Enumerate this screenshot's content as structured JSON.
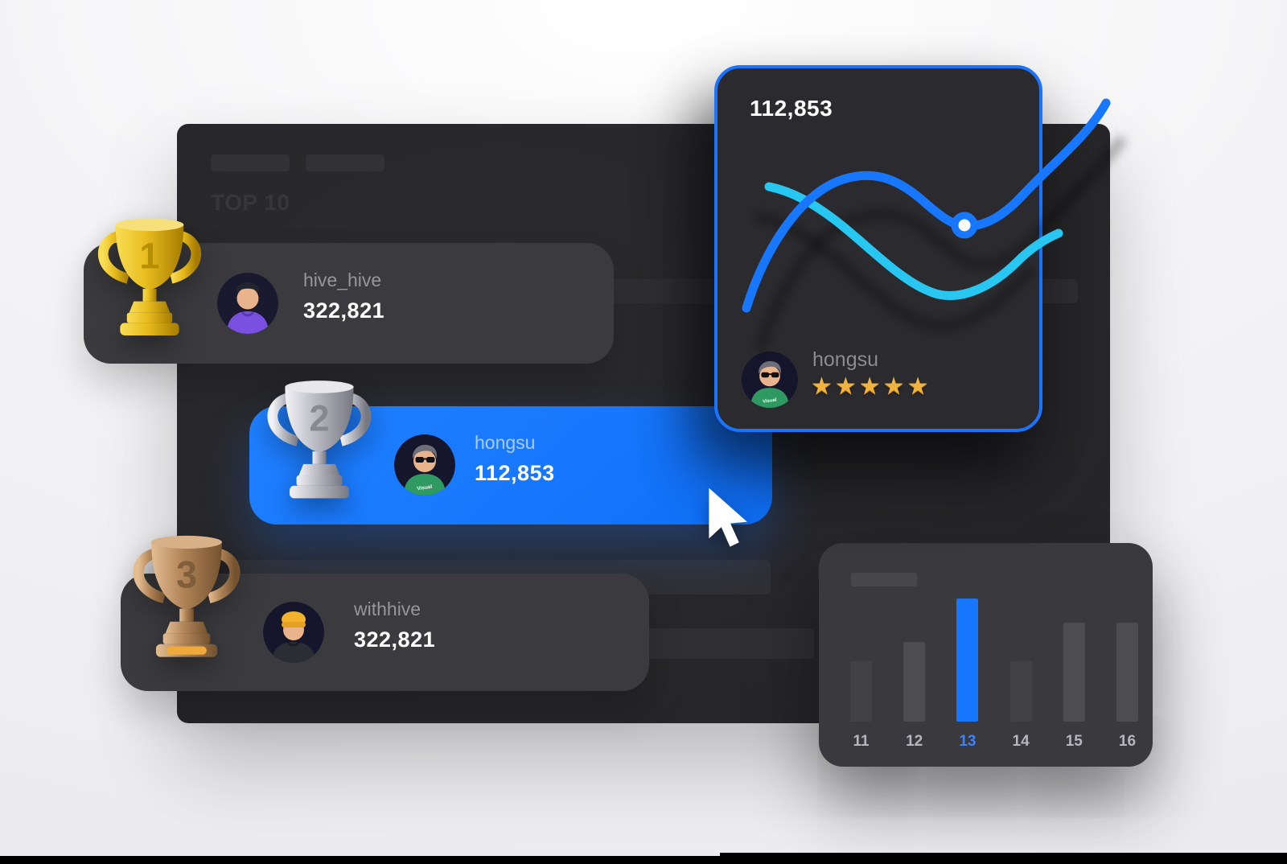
{
  "panel": {
    "top10_label": "TOP 10"
  },
  "leaderboard": {
    "rows": [
      {
        "rank": "1",
        "username": "hive_hive",
        "score": "322,821",
        "trophy": "gold",
        "highlighted": false
      },
      {
        "rank": "2",
        "username": "hongsu",
        "score": "112,853",
        "trophy": "silver",
        "highlighted": true
      },
      {
        "rank": "3",
        "username": "withhive",
        "score": "322,821",
        "trophy": "bronze",
        "highlighted": false
      }
    ]
  },
  "stat_card": {
    "value": "112,853",
    "username": "hongsu",
    "rating": 5,
    "star_glyph": "★",
    "shirt_text": "Visual"
  },
  "bar_card": {
    "highlight_label": "13",
    "items": [
      {
        "label": "11",
        "value": 75,
        "tone": "dim"
      },
      {
        "label": "12",
        "value": 99,
        "tone": "mid"
      },
      {
        "label": "13",
        "value": 153,
        "tone": "blue"
      },
      {
        "label": "14",
        "value": 75,
        "tone": "dim"
      },
      {
        "label": "15",
        "value": 123,
        "tone": "mid"
      },
      {
        "label": "16",
        "value": 123,
        "tone": "mid"
      }
    ]
  },
  "colors": {
    "accent_blue": "#1778ff",
    "accent_cyan": "#27c7f2",
    "card_border_blue": "#1a74ff",
    "panel_bg": "#28282b",
    "row_bg": "#3b3b3f",
    "star_gold": "#f2b23e",
    "trophy_gold": "#e8bc1e",
    "trophy_silver": "#b9b9c2",
    "trophy_bronze": "#b08457"
  },
  "chart_data": [
    {
      "type": "line",
      "title": "",
      "annotation_value": "112,853",
      "legend_position": "none",
      "grid": false,
      "axes_visible": false,
      "series": [
        {
          "name": "blue",
          "color": "#1778ff",
          "values": [
            22,
            48,
            70,
            82,
            80,
            70,
            61,
            58,
            60,
            70,
            84,
            100
          ],
          "marker_at_index": 7
        },
        {
          "name": "cyan",
          "color": "#27c7f2",
          "values": [
            80,
            78,
            72,
            63,
            52,
            43,
            37,
            35,
            38,
            48,
            58,
            64
          ]
        }
      ],
      "x": [
        0,
        1,
        2,
        3,
        4,
        5,
        6,
        7,
        8,
        9,
        10,
        11
      ]
    },
    {
      "type": "bar",
      "categories": [
        "11",
        "12",
        "13",
        "14",
        "15",
        "16"
      ],
      "values": [
        75,
        99,
        153,
        75,
        123,
        123
      ],
      "highlight_category": "13",
      "ylabel": "",
      "xlabel": "",
      "grid": false,
      "units": "relative-height-px"
    }
  ]
}
